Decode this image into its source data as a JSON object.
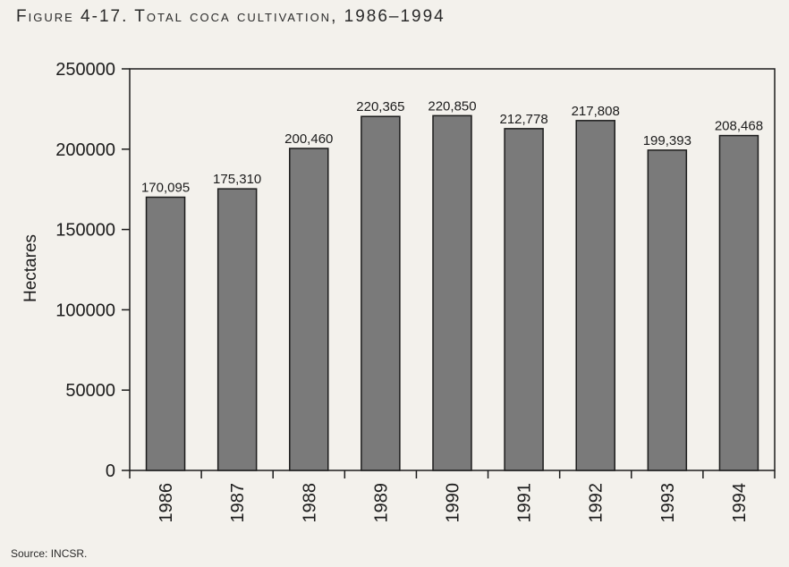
{
  "figure": {
    "title": "Figure 4-17. Total coca cultivation, 1986–1994",
    "source": "Source: INCSR."
  },
  "chart_data": {
    "type": "bar",
    "title": "Figure 4-17. Total coca cultivation, 1986–1994",
    "categories": [
      "1986",
      "1987",
      "1988",
      "1989",
      "1990",
      "1991",
      "1992",
      "1993",
      "1994"
    ],
    "values": [
      170095,
      175310,
      200460,
      220365,
      220850,
      212778,
      217808,
      199393,
      208468
    ],
    "value_labels": [
      "170,095",
      "175,310",
      "200,460",
      "220,365",
      "220,850",
      "212,778",
      "217,808",
      "199,393",
      "208,468"
    ],
    "xlabel": "",
    "ylabel": "Hectares",
    "ylim": [
      0,
      250000
    ],
    "yticks": [
      0,
      50000,
      100000,
      150000,
      200000,
      250000
    ],
    "ytick_labels": [
      "0",
      "50000",
      "100000",
      "150000",
      "200000",
      "250000"
    ],
    "grid": false,
    "bar_color": "#7a7a7a",
    "frame_color": "#1c1c1c"
  }
}
